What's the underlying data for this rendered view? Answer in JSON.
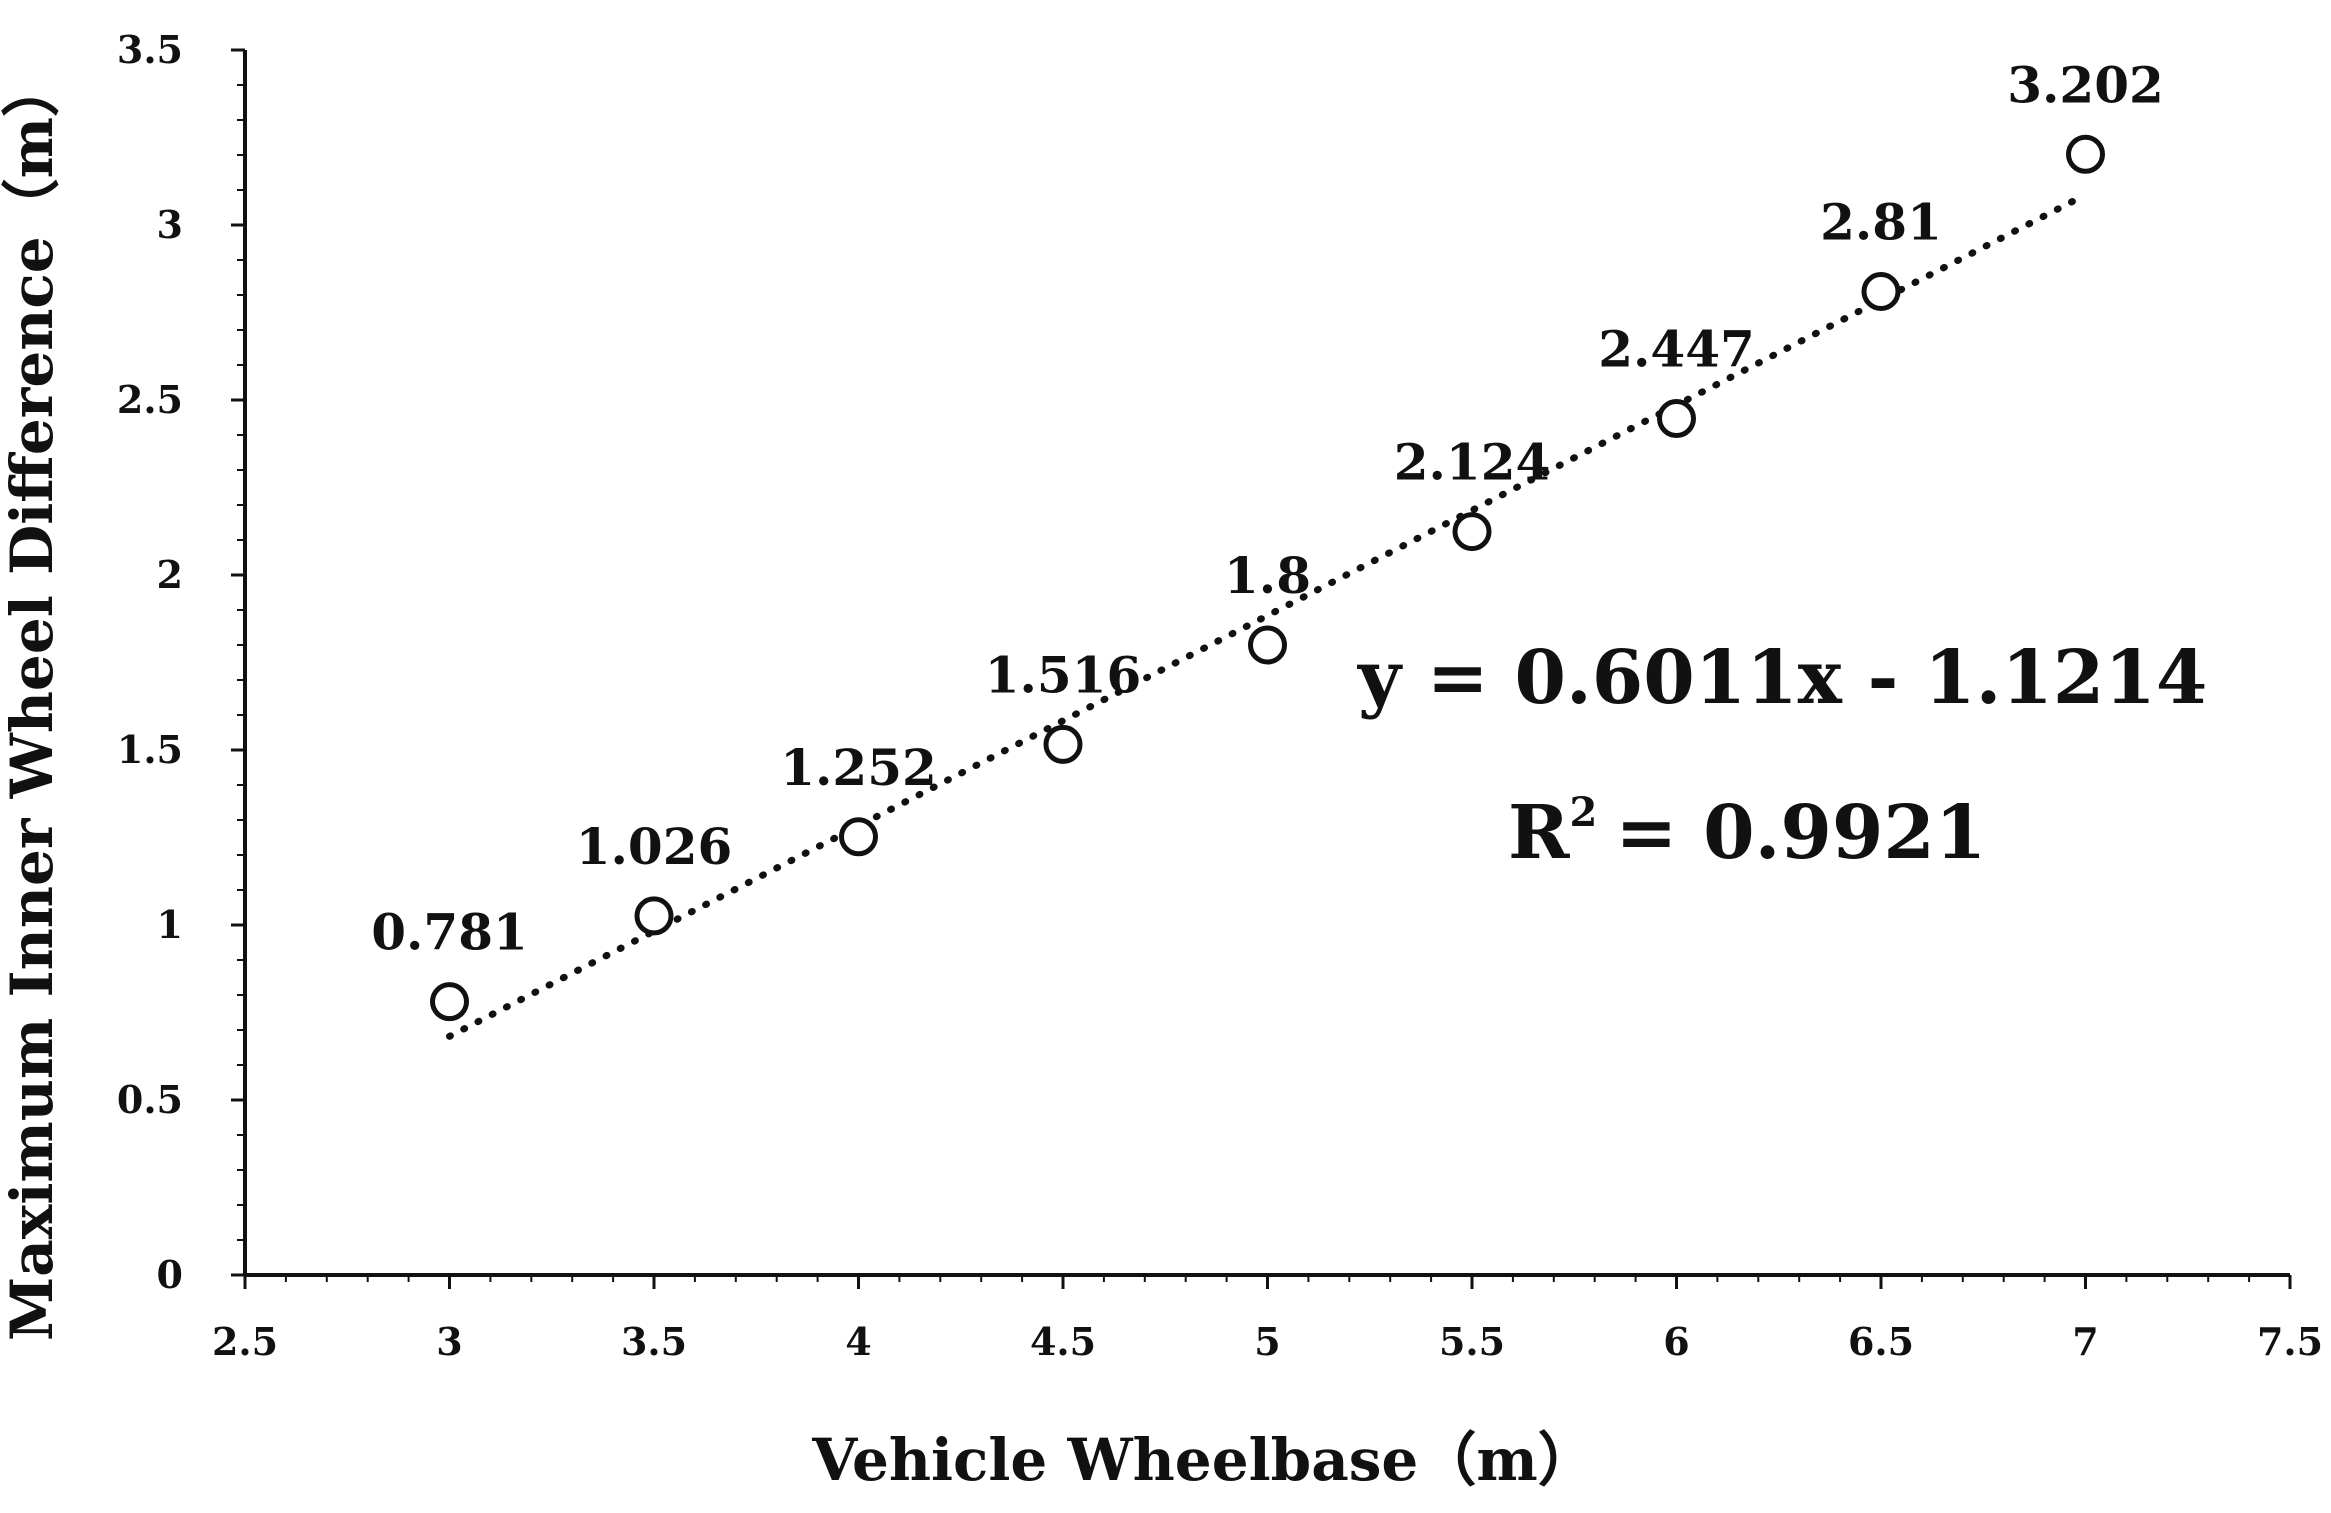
{
  "chart_data": {
    "type": "scatter",
    "x": [
      3,
      3.5,
      4,
      4.5,
      5,
      5.5,
      6,
      6.5,
      7
    ],
    "values": [
      0.781,
      1.026,
      1.252,
      1.516,
      1.8,
      2.124,
      2.447,
      2.81,
      3.202
    ],
    "data_labels": [
      "0.781",
      "1.026",
      "1.252",
      "1.516",
      "1.8",
      "2.124",
      "2.447",
      "2.81",
      "3.202"
    ],
    "xlabel": "Vehicle Wheelbase（m）",
    "ylabel": "Maximum Inner Wheel Difference（m）",
    "xlim": [
      2.5,
      7.5
    ],
    "ylim": [
      0,
      3.5
    ],
    "x_ticks": [
      "2.5",
      "3",
      "3.5",
      "4",
      "4.5",
      "5",
      "5.5",
      "6",
      "6.5",
      "7",
      "7.5"
    ],
    "y_ticks": [
      "0",
      "0.5",
      "1",
      "1.5",
      "2",
      "2.5",
      "3",
      "3.5"
    ],
    "trendline": {
      "type": "linear",
      "slope": 0.6011,
      "intercept": -1.1214,
      "style": "dotted",
      "equation": "y = 0.6011x - 1.1214",
      "r2_prefix": "R",
      "r2_exponent": "2",
      "r2_value": "= 0.9921"
    },
    "marker": "open-circle",
    "grid": false,
    "colors": {
      "marker": "#111111",
      "trendline": "#111111",
      "axis": "#111111"
    }
  }
}
